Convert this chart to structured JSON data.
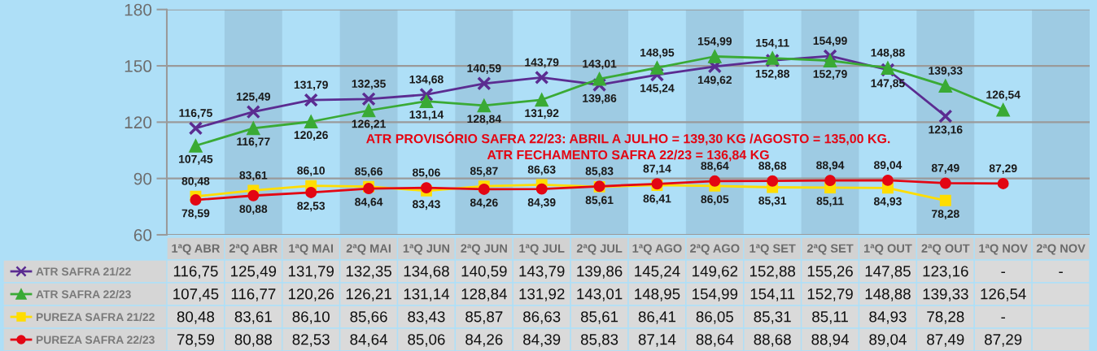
{
  "chart_data": {
    "type": "line",
    "categories": [
      "1ªQ ABR",
      "2ªQ ABR",
      "1ªQ MAI",
      "2ªQ MAI",
      "1ªQ JUN",
      "2ªQ JUN",
      "1ªQ JUL",
      "2ªQ JUL",
      "1ªQ AGO",
      "2ªQ AGO",
      "1ªQ SET",
      "2ªQ SET",
      "1ªQ OUT",
      "2ªQ OUT",
      "1ªQ NOV",
      "2ªQ NOV"
    ],
    "series": [
      {
        "name": "ATR SAFRA 21/22",
        "color": "#5b2c91",
        "marker": "cross",
        "values": [
          116.75,
          125.49,
          131.79,
          132.35,
          134.68,
          140.59,
          143.79,
          139.86,
          145.24,
          149.62,
          152.88,
          155.26,
          147.85,
          123.16,
          null,
          null
        ],
        "value_labels": [
          "116,75",
          "125,49",
          "131,79",
          "132,35",
          "134,68",
          "140,59",
          "143,79",
          "139,86",
          "145,24",
          "149,62",
          "152,88",
          "155,26",
          "147,85",
          "123,16",
          "-",
          "-"
        ]
      },
      {
        "name": "ATR SAFRA 22/23",
        "color": "#3aaa35",
        "marker": "triangle",
        "values": [
          107.45,
          116.77,
          120.26,
          126.21,
          131.14,
          128.84,
          131.92,
          143.01,
          148.95,
          154.99,
          154.11,
          152.79,
          148.88,
          139.33,
          126.54,
          null
        ],
        "value_labels": [
          "107,45",
          "116,77",
          "120,26",
          "126,21",
          "131,14",
          "128,84",
          "131,92",
          "143,01",
          "148,95",
          "154,99",
          "154,11",
          "152,79",
          "148,88",
          "139,33",
          "126,54",
          null
        ]
      },
      {
        "name": "PUREZA SAFRA 21/22",
        "color": "#ffdd00",
        "marker": "square",
        "values": [
          80.48,
          83.61,
          86.1,
          85.66,
          83.43,
          85.87,
          86.63,
          85.61,
          86.41,
          86.05,
          85.31,
          85.11,
          84.93,
          78.28,
          null,
          null
        ],
        "value_labels": [
          "80,48",
          "83,61",
          "86,10",
          "85,66",
          "83,43",
          "85,87",
          "86,63",
          "85,61",
          "86,41",
          "86,05",
          "85,31",
          "85,11",
          "84,93",
          "78,28",
          "-",
          null
        ]
      },
      {
        "name": "PUREZA SAFRA 22/23",
        "color": "#e30613",
        "marker": "circle",
        "values": [
          78.59,
          80.88,
          82.53,
          84.64,
          85.06,
          84.26,
          84.39,
          85.83,
          87.14,
          88.64,
          88.68,
          88.94,
          89.04,
          87.49,
          87.29,
          null
        ],
        "value_labels": [
          "78,59",
          "80,88",
          "82,53",
          "84,64",
          "85,06",
          "84,26",
          "84,39",
          "85,83",
          "87,14",
          "88,64",
          "88,68",
          "88,94",
          "89,04",
          "87,49",
          "87,29",
          null
        ]
      }
    ],
    "ylim": [
      60,
      180
    ],
    "yticks": [
      60,
      90,
      120,
      150,
      180
    ],
    "grid": "y",
    "legend": "bottom left",
    "bands": [
      {
        "axis": "x",
        "from": "2ªQ ABR",
        "to": "2ªQ ABR",
        "color": "#9ecbe3"
      },
      {
        "axis": "x",
        "from": "2ªQ MAI",
        "to": "2ªQ MAI",
        "color": "#9ecbe3"
      },
      {
        "axis": "x",
        "from": "2ªQ JUN",
        "to": "2ªQ JUN",
        "color": "#9ecbe3"
      },
      {
        "axis": "x",
        "from": "2ªQ JUL",
        "to": "2ªQ JUL",
        "color": "#9ecbe3"
      },
      {
        "axis": "x",
        "from": "2ªQ AGO",
        "to": "2ªQ AGO",
        "color": "#9ecbe3"
      },
      {
        "axis": "x",
        "from": "2ªQ SET",
        "to": "2ªQ SET",
        "color": "#9ecbe3"
      },
      {
        "axis": "x",
        "from": "2ªQ OUT",
        "to": "2ªQ OUT",
        "color": "#9ecbe3"
      },
      {
        "axis": "x",
        "from": "2ªQ NOV",
        "to": "2ªQ NOV",
        "color": "#9ecbe3"
      }
    ],
    "annotations": [
      "ATR PROVISÓRIO SAFRA 22/23: ABRIL A JULHO = 139,30 KG /AGOSTO = 135,00 KG.",
      "ATR FECHAMENTO SAFRA 22/23 = 136,84 KG",
      {
        "text": "154,99",
        "x": "2ªQ SET",
        "y": 155.26
      }
    ]
  }
}
